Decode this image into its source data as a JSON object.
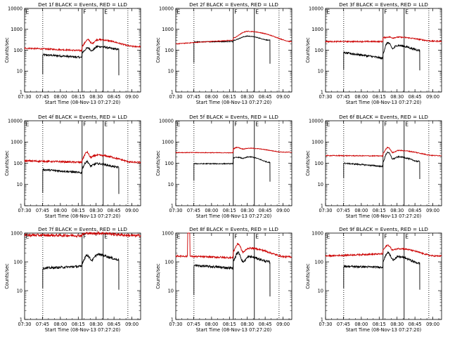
{
  "figure": {
    "colors": {
      "events": "#000000",
      "lld": "#cc0000",
      "background": "#ffffff"
    }
  },
  "chart_data": [
    {
      "type": "line",
      "title": "Det 1f BLACK = Events, RED = LLD",
      "xlabel": "Start Time (08-Nov-13 07:27:20)",
      "ylabel": "Counts/sec",
      "x_ticks": [
        "07:30",
        "07:45",
        "08:00",
        "08:15",
        "08:30",
        "08:45",
        "09:00"
      ],
      "x_range_min": [
        2.67,
        100
      ],
      "y_ticks": [
        "1",
        "10",
        "100",
        "1000",
        "10000"
      ],
      "ylim": [
        1,
        10000
      ],
      "yscale": "log",
      "vlines_solid_min": [
        50.9,
        68.6
      ],
      "vlines_dotted_min": [
        17.9,
        89.3
      ],
      "flags": [
        {
          "label": "E",
          "at_min": 2.67
        },
        {
          "label": "F",
          "at_min": 50.9
        },
        {
          "label": "E",
          "at_min": 68.6
        }
      ],
      "series": [
        {
          "name": "Events",
          "color": "#000000",
          "start_min": 17.9,
          "end_min": 81.7,
          "base": 52,
          "start_val": 60,
          "level_at_end": 45,
          "jump": 80,
          "peak_val": 130,
          "peak_at": 56,
          "dip_val": 95,
          "dip_at": 59,
          "hump_val": 150,
          "hump_at": 64,
          "end_val": 110,
          "tail_val": 7,
          "noise": 0.09
        },
        {
          "name": "LLD",
          "color": "#cc0000",
          "start_min": 2.67,
          "end_min": 100,
          "base": 120,
          "start_val": 125,
          "level_at_end": 95,
          "jump": 160,
          "peak_val": 320,
          "peak_at": 56,
          "dip_val": 210,
          "dip_at": 59,
          "hump_val": 320,
          "hump_at": 64,
          "end_val": 150,
          "noise": 0.07
        }
      ]
    },
    {
      "type": "line",
      "title": "Det 2f BLACK = Events, RED = LLD",
      "xlabel": "Start Time (08-Nov-13 07:27:20)",
      "ylabel": "Counts/sec",
      "x_ticks": [
        "07:30",
        "07:45",
        "08:00",
        "08:15",
        "08:30",
        "08:45",
        "09:00"
      ],
      "x_range_min": [
        2.67,
        100
      ],
      "y_ticks": [
        "1",
        "10",
        "100",
        "1000",
        "10000"
      ],
      "ylim": [
        1,
        10000
      ],
      "yscale": "log",
      "vlines_solid_min": [
        50.9,
        68.6
      ],
      "vlines_dotted_min": [
        17.9,
        89.3
      ],
      "flags": [
        {
          "label": "E",
          "at_min": 2.67
        },
        {
          "label": "F",
          "at_min": 50.9
        },
        {
          "label": "E",
          "at_min": 68.6
        }
      ],
      "series": [
        {
          "name": "Events",
          "color": "#000000",
          "start_min": 17.9,
          "end_min": 81.7,
          "base": 260,
          "start_val": 250,
          "level_at_end": 260,
          "jump": 300,
          "peak_val": 470,
          "peak_at": 63,
          "dip_val": 440,
          "dip_at": 60,
          "hump_val": 470,
          "hump_at": 63,
          "end_val": 300,
          "tail_val": 25,
          "noise": 0.035
        },
        {
          "name": "LLD",
          "color": "#cc0000",
          "start_min": 2.67,
          "end_min": 100,
          "base": 270,
          "start_val": 200,
          "level_at_end": 300,
          "jump": 390,
          "peak_val": 800,
          "peak_at": 63,
          "dip_val": 700,
          "dip_at": 60,
          "hump_val": 800,
          "hump_at": 63,
          "end_val": 260,
          "noise": 0.035
        }
      ]
    },
    {
      "type": "line",
      "title": "Det 3f BLACK = Events, RED = LLD",
      "xlabel": "Start Time (08-Nov-13 07:27:20)",
      "ylabel": "Counts/sec",
      "x_ticks": [
        "07:30",
        "07:45",
        "08:00",
        "08:15",
        "08:30",
        "08:45",
        "09:00"
      ],
      "x_range_min": [
        2.67,
        100
      ],
      "y_ticks": [
        "1",
        "10",
        "100",
        "1000",
        "10000"
      ],
      "ylim": [
        1,
        10000
      ],
      "yscale": "log",
      "vlines_solid_min": [
        50.9,
        68.6
      ],
      "vlines_dotted_min": [
        17.9,
        89.3
      ],
      "flags": [
        {
          "label": "E",
          "at_min": 2.67
        },
        {
          "label": "F",
          "at_min": 50.9
        },
        {
          "label": "E",
          "at_min": 68.6
        }
      ],
      "series": [
        {
          "name": "Events",
          "color": "#000000",
          "start_min": 17.9,
          "end_min": 81.7,
          "base": 62,
          "start_val": 75,
          "level_at_end": 40,
          "jump": 75,
          "peak_val": 230,
          "peak_at": 55,
          "dip_val": 120,
          "dip_at": 59,
          "hump_val": 170,
          "hump_at": 63,
          "end_val": 100,
          "tail_val": 12,
          "noise": 0.1
        },
        {
          "name": "LLD",
          "color": "#cc0000",
          "start_min": 2.67,
          "end_min": 100,
          "base": 260,
          "start_val": 260,
          "level_at_end": 260,
          "jump": 400,
          "peak_val": 430,
          "peak_at": 56,
          "dip_val": 390,
          "dip_at": 59,
          "hump_val": 420,
          "hump_at": 63,
          "end_val": 270,
          "noise": 0.06
        }
      ]
    },
    {
      "type": "line",
      "title": "Det 4f BLACK = Events, RED = LLD",
      "xlabel": "Start Time (08-Nov-13 07:27:20)",
      "ylabel": "Counts/sec",
      "x_ticks": [
        "07:30",
        "07:45",
        "08:00",
        "08:15",
        "08:30",
        "08:45",
        "09:00"
      ],
      "x_range_min": [
        2.67,
        100
      ],
      "y_ticks": [
        "1",
        "10",
        "100",
        "1000",
        "10000"
      ],
      "ylim": [
        1,
        10000
      ],
      "yscale": "log",
      "vlines_solid_min": [
        50.9,
        68.6
      ],
      "vlines_dotted_min": [
        17.9,
        89.3
      ],
      "flags": [
        {
          "label": "E",
          "at_min": 2.67
        },
        {
          "label": "F",
          "at_min": 50.9
        },
        {
          "label": "E",
          "at_min": 68.6
        }
      ],
      "series": [
        {
          "name": "Events",
          "color": "#000000",
          "start_min": 17.9,
          "end_min": 81.7,
          "base": 45,
          "start_val": 50,
          "level_at_end": 35,
          "jump": 60,
          "peak_val": 120,
          "peak_at": 55,
          "dip_val": 75,
          "dip_at": 58,
          "hump_val": 95,
          "hump_at": 63,
          "end_val": 65,
          "tail_val": 4,
          "noise": 0.09
        },
        {
          "name": "LLD",
          "color": "#cc0000",
          "start_min": 2.67,
          "end_min": 100,
          "base": 140,
          "start_val": 130,
          "level_at_end": 110,
          "jump": 150,
          "peak_val": 330,
          "peak_at": 55,
          "dip_val": 190,
          "dip_at": 58,
          "hump_val": 240,
          "hump_at": 63,
          "end_val": 110,
          "noise": 0.08
        }
      ]
    },
    {
      "type": "line",
      "title": "Det 5f BLACK = Events, RED = LLD",
      "xlabel": "Start Time (08-Nov-13 07:27:20)",
      "ylabel": "Counts/sec",
      "x_ticks": [
        "07:30",
        "07:45",
        "08:00",
        "08:15",
        "08:30",
        "08:45",
        "09:00"
      ],
      "x_range_min": [
        2.67,
        100
      ],
      "y_ticks": [
        "1",
        "10",
        "100",
        "1000",
        "10000"
      ],
      "ylim": [
        1,
        10000
      ],
      "yscale": "log",
      "vlines_solid_min": [
        50.9,
        68.6
      ],
      "vlines_dotted_min": [
        17.9,
        89.3
      ],
      "flags": [
        {
          "label": "E",
          "at_min": 2.67
        },
        {
          "label": "F",
          "at_min": 50.9
        },
        {
          "label": "E",
          "at_min": 68.6
        }
      ],
      "series": [
        {
          "name": "Events",
          "color": "#000000",
          "start_min": 17.9,
          "end_min": 81.7,
          "base": 90,
          "start_val": 95,
          "level_at_end": 95,
          "jump": 180,
          "peak_val": 190,
          "peak_at": 55,
          "dip_val": 170,
          "dip_at": 59,
          "hump_val": 200,
          "hump_at": 64,
          "end_val": 110,
          "tail_val": 15,
          "noise": 0.04
        },
        {
          "name": "LLD",
          "color": "#cc0000",
          "start_min": 2.67,
          "end_min": 100,
          "base": 350,
          "start_val": 320,
          "level_at_end": 310,
          "jump": 480,
          "peak_val": 560,
          "peak_at": 54,
          "dip_val": 470,
          "dip_at": 59,
          "hump_val": 510,
          "hump_at": 64,
          "end_val": 330,
          "noise": 0.03
        }
      ]
    },
    {
      "type": "line",
      "title": "Det 6f BLACK = Events, RED = LLD",
      "xlabel": "Start Time (08-Nov-13 07:27:20)",
      "ylabel": "Counts/sec",
      "x_ticks": [
        "07:30",
        "07:45",
        "08:00",
        "08:15",
        "08:30",
        "08:45",
        "09:00"
      ],
      "x_range_min": [
        2.67,
        100
      ],
      "y_ticks": [
        "1",
        "10",
        "100",
        "1000",
        "10000"
      ],
      "ylim": [
        1,
        10000
      ],
      "yscale": "log",
      "vlines_solid_min": [
        50.9,
        68.6
      ],
      "vlines_dotted_min": [
        17.9,
        89.3
      ],
      "flags": [
        {
          "label": "E",
          "at_min": 2.67
        },
        {
          "label": "F",
          "at_min": 50.9
        },
        {
          "label": "E",
          "at_min": 68.6
        }
      ],
      "series": [
        {
          "name": "Events",
          "color": "#000000",
          "start_min": 17.9,
          "end_min": 81.7,
          "base": 92,
          "start_val": 100,
          "level_at_end": 70,
          "jump": 120,
          "peak_val": 330,
          "peak_at": 55,
          "dip_val": 160,
          "dip_at": 59,
          "hump_val": 200,
          "hump_at": 64,
          "end_val": 120,
          "tail_val": 20,
          "noise": 0.06
        },
        {
          "name": "LLD",
          "color": "#cc0000",
          "start_min": 2.67,
          "end_min": 100,
          "base": 230,
          "start_val": 230,
          "level_at_end": 220,
          "jump": 300,
          "peak_val": 560,
          "peak_at": 55,
          "dip_val": 320,
          "dip_at": 59,
          "hump_val": 400,
          "hump_at": 64,
          "end_val": 230,
          "noise": 0.04
        }
      ]
    },
    {
      "type": "line",
      "title": "Det 7f BLACK = Events, RED = LLD",
      "xlabel": "Start Time (08-Nov-13 07:27:20)",
      "ylabel": "Counts/sec",
      "x_ticks": [
        "07:30",
        "07:45",
        "08:00",
        "08:15",
        "08:30",
        "08:45",
        "09:00"
      ],
      "x_range_min": [
        2.67,
        100
      ],
      "y_ticks": [
        "1",
        "10",
        "100",
        "1000"
      ],
      "ylim": [
        1,
        1000
      ],
      "yscale": "log",
      "vlines_solid_min": [
        50.9,
        68.6
      ],
      "vlines_dotted_min": [
        17.9,
        89.3
      ],
      "flags": [
        {
          "label": "E",
          "at_min": 2.67
        },
        {
          "label": "F",
          "at_min": 50.9
        },
        {
          "label": "E",
          "at_min": 68.6
        }
      ],
      "series": [
        {
          "name": "Events",
          "color": "#000000",
          "start_min": 17.9,
          "end_min": 81.7,
          "base": 65,
          "start_val": 60,
          "level_at_end": 70,
          "jump": 95,
          "peak_val": 170,
          "peak_at": 55,
          "dip_val": 115,
          "dip_at": 59,
          "hump_val": 180,
          "hump_at": 64,
          "end_val": 120,
          "tail_val": 12,
          "noise": 0.08
        },
        {
          "name": "LLD",
          "color": "#cc0000",
          "start_min": 2.67,
          "end_min": 100,
          "base": 820,
          "start_val": 850,
          "level_at_end": 820,
          "jump": 900,
          "peak_val": 1000,
          "peak_at": 56,
          "dip_val": 960,
          "dip_at": 59,
          "hump_val": 990,
          "hump_at": 64,
          "end_val": 820,
          "noise": 0.09
        }
      ]
    },
    {
      "type": "line",
      "title": "Det 8f BLACK = Events, RED = LLD",
      "xlabel": "Start Time (08-Nov-13 07:27:20)",
      "ylabel": "Counts/sec",
      "x_ticks": [
        "07:30",
        "07:45",
        "08:00",
        "08:15",
        "08:30",
        "08:45",
        "09:00"
      ],
      "x_range_min": [
        2.67,
        100
      ],
      "y_ticks": [
        "1",
        "10",
        "100",
        "1000"
      ],
      "ylim": [
        1,
        1000
      ],
      "yscale": "log",
      "vlines_solid_min": [
        50.9,
        68.6
      ],
      "vlines_dotted_min": [
        17.9,
        89.3
      ],
      "flags": [
        {
          "label": "E",
          "at_min": 2.67
        },
        {
          "label": "F",
          "at_min": 50.9
        },
        {
          "label": "E",
          "at_min": 68.6
        }
      ],
      "series": [
        {
          "name": "Events",
          "color": "#000000",
          "start_min": 17.9,
          "end_min": 81.7,
          "base": 70,
          "start_val": 75,
          "level_at_end": 60,
          "jump": 110,
          "peak_val": 210,
          "peak_at": 55,
          "dip_val": 100,
          "dip_at": 59,
          "hump_val": 150,
          "hump_at": 64,
          "end_val": 100,
          "tail_val": 7,
          "noise": 0.08
        },
        {
          "name": "LLD",
          "color": "#cc0000",
          "start_min": 2.67,
          "end_min": 100,
          "base": 170,
          "start_val": 160,
          "level_at_end": 140,
          "jump": 240,
          "peak_val": 420,
          "peak_at": 55,
          "dip_val": 220,
          "dip_at": 59,
          "hump_val": 300,
          "hump_at": 64,
          "end_val": 150,
          "noise": 0.06,
          "spike_at_min": [
            12.5,
            14.5
          ],
          "spike_val": 1000
        }
      ]
    },
    {
      "type": "line",
      "title": "Det 9f BLACK = Events, RED = LLD",
      "xlabel": "Start Time (08-Nov-13 07:27:20)",
      "ylabel": "Counts/sec",
      "x_ticks": [
        "07:30",
        "07:45",
        "08:00",
        "08:15",
        "08:30",
        "08:45",
        "09:00"
      ],
      "x_range_min": [
        2.67,
        100
      ],
      "y_ticks": [
        "1",
        "10",
        "100",
        "1000"
      ],
      "ylim": [
        1,
        1000
      ],
      "yscale": "log",
      "vlines_solid_min": [
        50.9,
        68.6
      ],
      "vlines_dotted_min": [
        17.9,
        89.3
      ],
      "flags": [
        {
          "label": "E",
          "at_min": 2.67
        },
        {
          "label": "F",
          "at_min": 50.9
        },
        {
          "label": "E",
          "at_min": 68.6
        }
      ],
      "series": [
        {
          "name": "Events",
          "color": "#000000",
          "start_min": 17.9,
          "end_min": 81.7,
          "base": 75,
          "start_val": 70,
          "level_at_end": 65,
          "jump": 110,
          "peak_val": 210,
          "peak_at": 55,
          "dip_val": 120,
          "dip_at": 59,
          "hump_val": 150,
          "hump_at": 64,
          "end_val": 90,
          "tail_val": 12,
          "noise": 0.07
        },
        {
          "name": "LLD",
          "color": "#cc0000",
          "start_min": 2.67,
          "end_min": 100,
          "base": 175,
          "start_val": 160,
          "level_at_end": 190,
          "jump": 270,
          "peak_val": 380,
          "peak_at": 55,
          "dip_val": 260,
          "dip_at": 59,
          "hump_val": 290,
          "hump_at": 64,
          "end_val": 160,
          "noise": 0.05
        }
      ]
    }
  ]
}
